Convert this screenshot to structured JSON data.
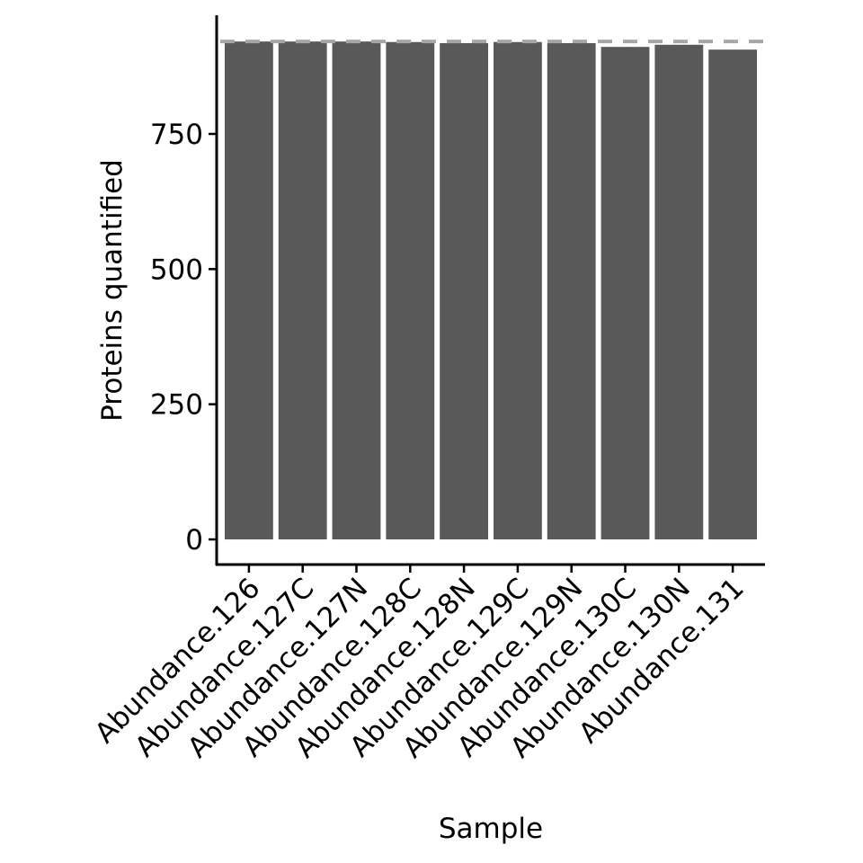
{
  "chart_data": {
    "type": "bar",
    "x_label": "Sample",
    "y_label": "Proteins quantified",
    "categories": [
      "Abundance.126",
      "Abundance.127C",
      "Abundance.127N",
      "Abundance.128C",
      "Abundance.128N",
      "Abundance.129C",
      "Abundance.129N",
      "Abundance.130C",
      "Abundance.130N",
      "Abundance.131"
    ],
    "values": [
      921,
      921,
      921,
      920,
      918,
      920,
      918,
      911,
      915,
      906
    ],
    "color": "#595959",
    "reference_line": 921,
    "reference_color": "#a6a6a6",
    "ylim": [
      -46.5,
      969.5
    ],
    "yticks": [
      0,
      250,
      500,
      750
    ]
  }
}
